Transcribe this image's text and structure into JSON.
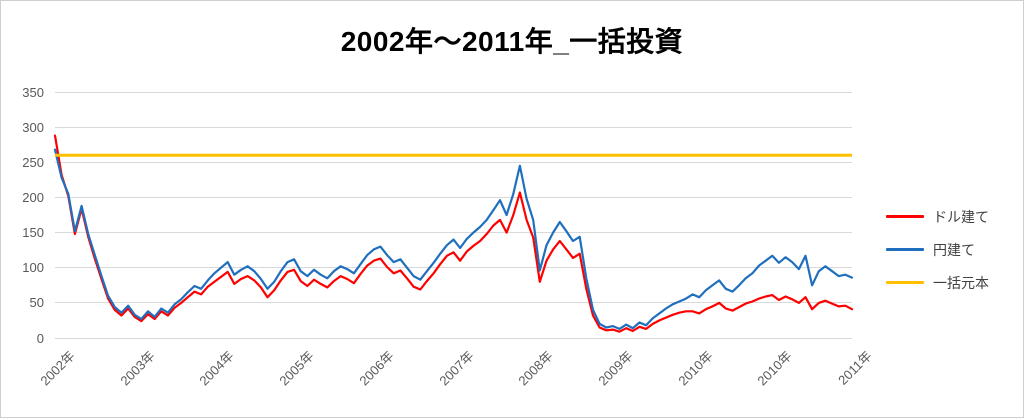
{
  "chart": {
    "title": "2002年～2011年_一括投資"
  },
  "chart_data": {
    "type": "line",
    "title": "2002年～2011年_一括投資",
    "xlabel": "",
    "ylabel": "",
    "ylim": [
      0,
      350
    ],
    "y_ticks": [
      0,
      50,
      100,
      150,
      200,
      250,
      300,
      350
    ],
    "x_tick_labels": [
      "2002年",
      "2003年",
      "2004年",
      "2005年",
      "2006年",
      "2007年",
      "2008年",
      "2009年",
      "2010年",
      "2010年",
      "2011年"
    ],
    "grid": "horizontal-only",
    "gridline_color": "#d9d9d9",
    "tick_label_color": "#595959",
    "legend_position": "right",
    "series": [
      {
        "id": "usd",
        "name": "ドル建て",
        "color": "#FF0000",
        "values": [
          288,
          232,
          202,
          148,
          184,
          144,
          113,
          84,
          56,
          40,
          32,
          42,
          30,
          24,
          34,
          27,
          38,
          32,
          43,
          50,
          58,
          66,
          62,
          73,
          80,
          87,
          94,
          77,
          84,
          88,
          82,
          72,
          58,
          68,
          82,
          94,
          97,
          81,
          74,
          83,
          77,
          72,
          81,
          88,
          84,
          78,
          91,
          103,
          110,
          113,
          101,
          92,
          96,
          85,
          73,
          69,
          81,
          92,
          105,
          117,
          122,
          110,
          123,
          131,
          138,
          148,
          160,
          168,
          150,
          175,
          207,
          168,
          143,
          80,
          110,
          126,
          138,
          126,
          114,
          120,
          70,
          32,
          15,
          11,
          12,
          9,
          14,
          10,
          16,
          13,
          20,
          25,
          29,
          33,
          36,
          38,
          38,
          35,
          41,
          45,
          50,
          42,
          39,
          44,
          49,
          52,
          56,
          59,
          61,
          54,
          59,
          55,
          50,
          58,
          41,
          50,
          53,
          49,
          45,
          46,
          41
        ]
      },
      {
        "id": "jpy",
        "name": "円建て",
        "color": "#1F6FBE",
        "values": [
          268,
          228,
          205,
          152,
          188,
          148,
          118,
          88,
          60,
          44,
          36,
          46,
          33,
          27,
          38,
          30,
          42,
          36,
          48,
          55,
          65,
          74,
          70,
          82,
          92,
          100,
          108,
          90,
          97,
          102,
          95,
          84,
          70,
          80,
          95,
          108,
          112,
          95,
          88,
          97,
          90,
          85,
          95,
          102,
          98,
          92,
          105,
          118,
          126,
          130,
          118,
          108,
          112,
          100,
          88,
          83,
          95,
          107,
          120,
          132,
          140,
          128,
          141,
          150,
          158,
          168,
          182,
          196,
          175,
          205,
          245,
          198,
          168,
          96,
          132,
          150,
          165,
          152,
          138,
          144,
          85,
          40,
          20,
          15,
          17,
          13,
          19,
          14,
          22,
          18,
          28,
          35,
          42,
          48,
          52,
          56,
          62,
          58,
          68,
          75,
          82,
          70,
          66,
          75,
          85,
          92,
          103,
          110,
          117,
          107,
          115,
          108,
          98,
          117,
          75,
          95,
          102,
          95,
          88,
          90,
          86
        ]
      },
      {
        "id": "principal",
        "name": "一括元本",
        "color": "#FFC000",
        "constant": 260
      }
    ]
  }
}
